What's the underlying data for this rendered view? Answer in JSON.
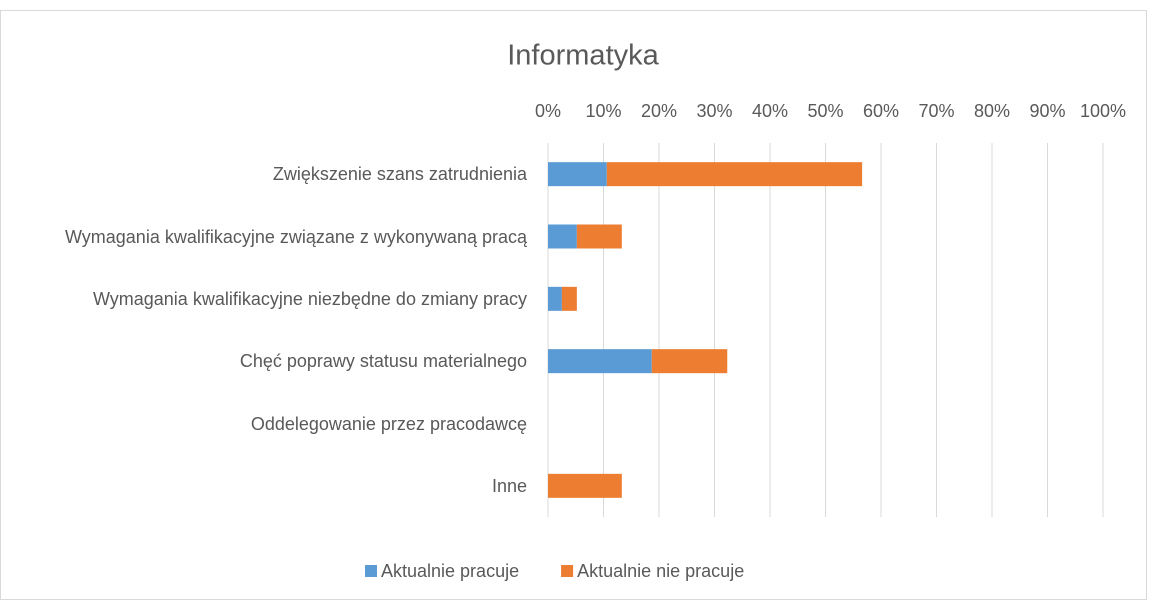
{
  "chart_data": {
    "type": "bar",
    "orientation": "horizontal",
    "stacked": true,
    "title": "Informatyka",
    "categories": [
      "Zwiększenie szans zatrudnienia",
      "Wymagania kwalifikacyjne związane z wykonywaną pracą",
      "Wymagania kwalifikacyjne niezbędne do zmiany pracy",
      "Chęć poprawy statusu materialnego",
      "Oddelegowanie przez pracodawcę",
      "Inne"
    ],
    "series": [
      {
        "name": "Aktualnie pracuje",
        "color": "#5b9bd5",
        "values": [
          10.6,
          5.2,
          2.5,
          18.7,
          0,
          0
        ]
      },
      {
        "name": "Aktualnie nie pracuje",
        "color": "#ed7d31",
        "values": [
          46.0,
          8.1,
          2.7,
          13.6,
          0,
          13.3
        ]
      }
    ],
    "xlim": [
      0,
      100
    ],
    "xticks": [
      {
        "value": 0,
        "label": "0%"
      },
      {
        "value": 10,
        "label": "10%"
      },
      {
        "value": 20,
        "label": "20%"
      },
      {
        "value": 30,
        "label": "30%"
      },
      {
        "value": 40,
        "label": "40%"
      },
      {
        "value": 50,
        "label": "50%"
      },
      {
        "value": 60,
        "label": "60%"
      },
      {
        "value": 70,
        "label": "70%"
      },
      {
        "value": 80,
        "label": "80%"
      },
      {
        "value": 90,
        "label": "90%"
      },
      {
        "value": 100,
        "label": "100%"
      }
    ],
    "grid": true,
    "legend": "bottom"
  }
}
